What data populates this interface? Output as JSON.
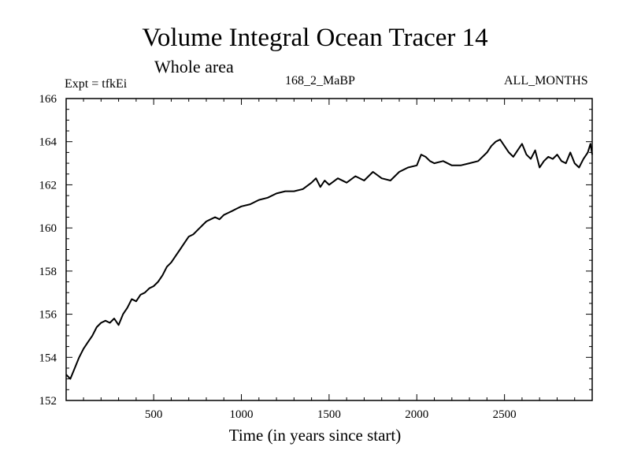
{
  "title": "Volume Integral Ocean Tracer 14",
  "subtitle": "Whole area",
  "expt_label": "Expt = tfkEi",
  "center_label": "168_2_MaBP",
  "right_label": "ALL_MONTHS",
  "chart_data": {
    "type": "line",
    "title": "Volume Integral Ocean Tracer 14",
    "subtitle": "Whole area",
    "xlabel": "Time (in years since start)",
    "ylabel": "",
    "xlim": [
      1,
      3000
    ],
    "ylim": [
      152,
      166
    ],
    "xticks": [
      500,
      1000,
      1500,
      2000,
      2500
    ],
    "yticks": [
      152,
      154,
      156,
      158,
      160,
      162,
      164,
      166
    ],
    "grid": false,
    "line_color": "#000000",
    "series": [
      {
        "x": [
          1,
          25,
          50,
          75,
          100,
          125,
          150,
          175,
          200,
          225,
          250,
          275,
          300,
          325,
          350,
          375,
          400,
          425,
          450,
          475,
          500,
          525,
          550,
          575,
          600,
          625,
          650,
          675,
          700,
          725,
          750,
          775,
          800,
          825,
          850,
          875,
          900,
          925,
          950,
          975,
          1000,
          1050,
          1100,
          1150,
          1200,
          1250,
          1300,
          1350,
          1400,
          1425,
          1450,
          1475,
          1500,
          1550,
          1600,
          1650,
          1700,
          1750,
          1800,
          1850,
          1900,
          1950,
          2000,
          2025,
          2050,
          2075,
          2100,
          2150,
          2200,
          2250,
          2300,
          2350,
          2400,
          2425,
          2450,
          2475,
          2500,
          2525,
          2550,
          2575,
          2600,
          2625,
          2650,
          2675,
          2700,
          2725,
          2750,
          2775,
          2800,
          2825,
          2850,
          2875,
          2900,
          2925,
          2950,
          2975,
          2990,
          3000
        ],
        "values": [
          153.2,
          153.0,
          153.5,
          154.0,
          154.4,
          154.7,
          155.0,
          155.4,
          155.6,
          155.7,
          155.6,
          155.8,
          155.5,
          156.0,
          156.3,
          156.7,
          156.6,
          156.9,
          157.0,
          157.2,
          157.3,
          157.5,
          157.8,
          158.2,
          158.4,
          158.7,
          159.0,
          159.3,
          159.6,
          159.7,
          159.9,
          160.1,
          160.3,
          160.4,
          160.5,
          160.4,
          160.6,
          160.7,
          160.8,
          160.9,
          161.0,
          161.1,
          161.3,
          161.4,
          161.6,
          161.7,
          161.7,
          161.8,
          162.1,
          162.3,
          161.9,
          162.2,
          162.0,
          162.3,
          162.1,
          162.4,
          162.2,
          162.6,
          162.3,
          162.2,
          162.6,
          162.8,
          162.9,
          163.4,
          163.3,
          163.1,
          163.0,
          163.1,
          162.9,
          162.9,
          163.0,
          163.1,
          163.5,
          163.8,
          164.0,
          164.1,
          163.8,
          163.5,
          163.3,
          163.6,
          163.9,
          163.4,
          163.2,
          163.6,
          162.8,
          163.1,
          163.3,
          163.2,
          163.4,
          163.1,
          163.0,
          163.5,
          163.0,
          162.8,
          163.2,
          163.5,
          163.9,
          163.4
        ]
      }
    ]
  }
}
